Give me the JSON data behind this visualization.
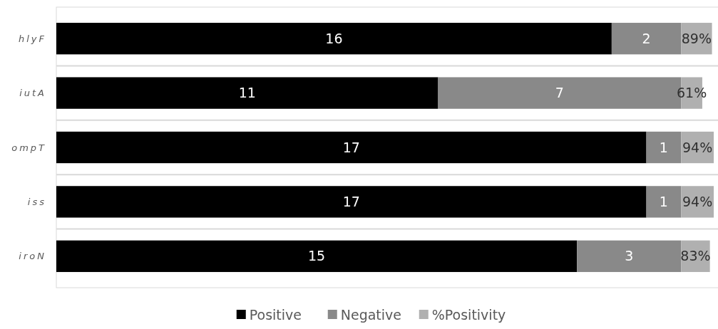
{
  "chart_data": {
    "type": "bar",
    "orientation": "horizontal",
    "stacked": true,
    "categories": [
      "hlyF",
      "iutA",
      "ompT",
      "iss",
      "iroN"
    ],
    "series": [
      {
        "name": "Positive",
        "color": "#000000",
        "values": [
          16,
          11,
          17,
          17,
          15
        ],
        "value_labels": [
          "16",
          "11",
          "17",
          "17",
          "15"
        ]
      },
      {
        "name": "Negative",
        "color": "#898989",
        "values": [
          2,
          7,
          1,
          1,
          3
        ],
        "value_labels": [
          "2",
          "7",
          "1",
          "1",
          "3"
        ]
      },
      {
        "name": "%Positivity",
        "color": "#b0b0b0",
        "values": [
          0.89,
          0.61,
          0.94,
          0.94,
          0.83
        ],
        "value_labels": [
          "89%",
          "61%",
          "94%",
          "94%",
          "83%"
        ]
      }
    ],
    "grid": "y",
    "legend": "bottom"
  }
}
